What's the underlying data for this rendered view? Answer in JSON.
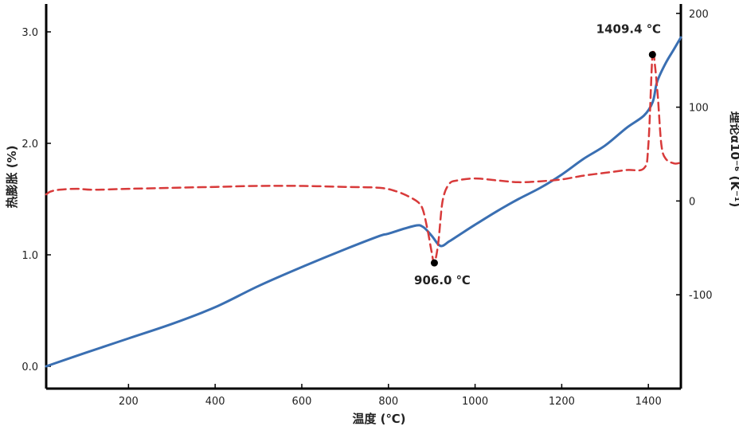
{
  "chart_data": {
    "type": "line",
    "xlabel": "温度 (℃)",
    "ylabel_left": "热膨胀 (%)",
    "ylabel_right": "理论α10⁻⁶ (K⁻¹)",
    "xlim": [
      10,
      1475
    ],
    "ylim_left": [
      -0.2,
      3.25
    ],
    "ylim_right": [
      -200,
      210
    ],
    "x_ticks": [
      200,
      400,
      600,
      800,
      1000,
      1200,
      1400
    ],
    "y_left_ticks": [
      0.0,
      1.0,
      2.0,
      3.0
    ],
    "y_left_tick_labels": [
      "0.0",
      "1.0",
      "2.0",
      "3.0"
    ],
    "y_right_ticks": [
      -100,
      0,
      100,
      200
    ],
    "grid": false,
    "colors": {
      "expansion": "#3a6fb2",
      "alpha": "#d83a3a",
      "axis": "#000000"
    },
    "series": [
      {
        "axis": "left",
        "style": "solid",
        "x": [
          10,
          100,
          200,
          300,
          400,
          500,
          600,
          700,
          780,
          800,
          860,
          880,
          900,
          920,
          940,
          960,
          1000,
          1050,
          1100,
          1150,
          1200,
          1250,
          1300,
          1350,
          1390,
          1410,
          1420,
          1440,
          1460,
          1475
        ],
        "values": [
          0.0,
          0.12,
          0.25,
          0.38,
          0.53,
          0.72,
          0.89,
          1.05,
          1.17,
          1.19,
          1.26,
          1.25,
          1.17,
          1.08,
          1.12,
          1.17,
          1.27,
          1.39,
          1.5,
          1.6,
          1.72,
          1.86,
          1.98,
          2.14,
          2.25,
          2.37,
          2.55,
          2.72,
          2.85,
          2.95
        ]
      },
      {
        "axis": "right",
        "style": "dashed",
        "x": [
          10,
          20,
          40,
          80,
          120,
          200,
          300,
          400,
          500,
          600,
          700,
          780,
          820,
          850,
          870,
          880,
          890,
          900,
          906,
          915,
          925,
          940,
          960,
          1000,
          1050,
          1100,
          1150,
          1200,
          1250,
          1300,
          1350,
          1390,
          1400,
          1409.4,
          1415,
          1422,
          1430,
          1440,
          1460,
          1475
        ],
        "values": [
          7,
          10,
          12,
          13,
          12,
          13,
          14,
          15,
          16,
          16,
          15,
          14,
          10,
          4,
          -2,
          -10,
          -30,
          -55,
          -66,
          -45,
          0,
          18,
          22,
          24,
          22,
          20,
          21,
          23,
          27,
          30,
          33,
          35,
          60,
          156,
          145,
          110,
          60,
          45,
          40,
          41
        ]
      }
    ],
    "annotations": [
      {
        "x": 906.0,
        "series": 1,
        "y": -66,
        "label": "906.0 ℃"
      },
      {
        "x": 1409.4,
        "series": 1,
        "y": 156,
        "label": "1409.4 ℃"
      }
    ]
  }
}
